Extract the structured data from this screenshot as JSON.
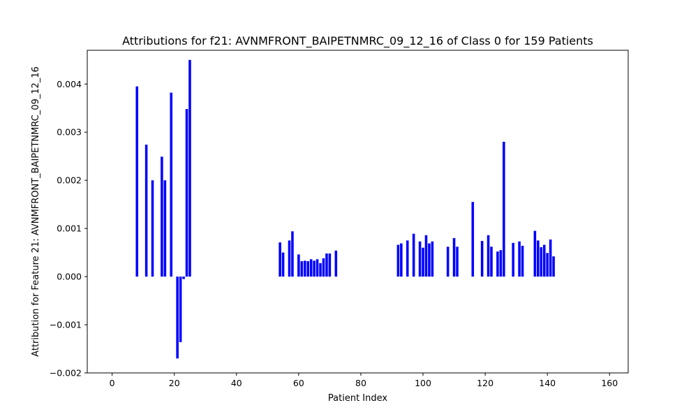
{
  "chart_data": {
    "type": "bar",
    "title": "Attributions for f21: AVNMFRONT_BAIPETNMRC_09_12_16 of Class 0 for 159 Patients",
    "xlabel": "Patient Index",
    "ylabel": "Attribution for Feature 21: AVNMFRONT_BAIPETNMRC_09_12_16",
    "xlim": [
      -8,
      166
    ],
    "ylim": [
      -0.002,
      0.0047
    ],
    "xticks": [
      0,
      20,
      40,
      60,
      80,
      100,
      120,
      140,
      160
    ],
    "xtick_labels": [
      "0",
      "20",
      "40",
      "60",
      "80",
      "100",
      "120",
      "140",
      "160"
    ],
    "yticks": [
      -0.002,
      -0.001,
      0.0,
      0.001,
      0.002,
      0.003,
      0.004
    ],
    "ytick_labels": [
      "−0.002",
      "−0.001",
      "0.000",
      "0.001",
      "0.002",
      "0.003",
      "0.004"
    ],
    "grid": false,
    "bar_color": "#0000ff",
    "series": [
      {
        "x": [
          8,
          11,
          13,
          16,
          17,
          19,
          21,
          22,
          23,
          24,
          25,
          54,
          55,
          57,
          58,
          60,
          61,
          62,
          63,
          64,
          65,
          66,
          67,
          68,
          69,
          70,
          72,
          92,
          93,
          95,
          97,
          99,
          100,
          101,
          102,
          103,
          108,
          110,
          111,
          116,
          119,
          121,
          122,
          124,
          125,
          126,
          129,
          131,
          132,
          136,
          137,
          138,
          139,
          140,
          141,
          142
        ],
        "values": [
          0.00395,
          0.00274,
          0.002,
          0.00249,
          0.002,
          0.00382,
          -0.0017,
          -0.00136,
          -5e-05,
          0.00348,
          0.0045,
          0.00071,
          0.0005,
          0.00075,
          0.00094,
          0.00046,
          0.00032,
          0.00033,
          0.00032,
          0.00036,
          0.00033,
          0.00036,
          0.00028,
          0.00038,
          0.00048,
          0.00048,
          0.00054,
          0.00066,
          0.00069,
          0.00075,
          0.00089,
          0.00073,
          0.0006,
          0.00086,
          0.00069,
          0.00073,
          0.00062,
          0.0008,
          0.00062,
          0.00155,
          0.00074,
          0.00086,
          0.00062,
          0.00052,
          0.00055,
          0.0028,
          0.0007,
          0.00073,
          0.00064,
          0.00095,
          0.00075,
          0.00061,
          0.00066,
          0.00049,
          0.00077,
          0.00042
        ]
      }
    ]
  }
}
